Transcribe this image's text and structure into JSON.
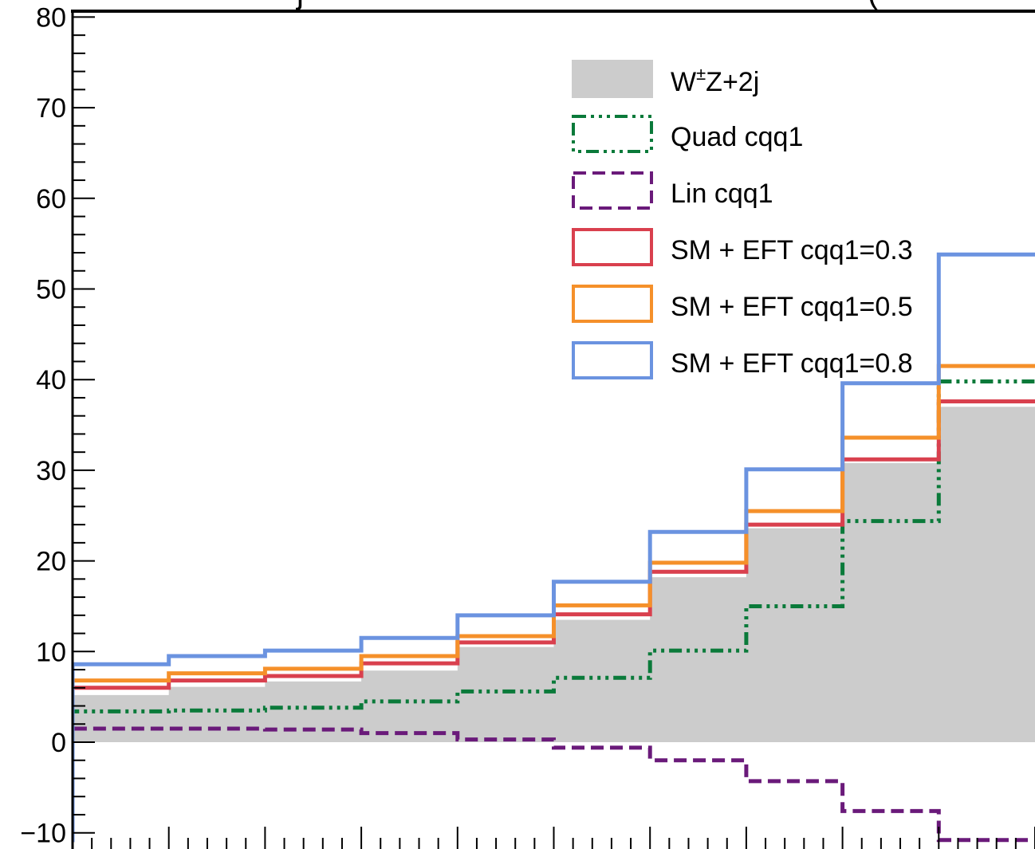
{
  "chart_data": {
    "type": "line",
    "title_left": "j",
    "title_right": "(",
    "xlabel": "",
    "ylabel": "",
    "ylim": [
      -11.0,
      80.0
    ],
    "yticks": [
      -10,
      0,
      10,
      20,
      30,
      40,
      50,
      60,
      70,
      80
    ],
    "ytick_labels": [
      "−10",
      "0",
      "10",
      "20",
      "30",
      "40",
      "50",
      "60",
      "70",
      "80"
    ],
    "x_bins": 10,
    "xlim": [
      0,
      10
    ],
    "grid": false,
    "legend_position": "top-right",
    "series": [
      {
        "name": "W±Z+2j",
        "label_main": "W",
        "label_sup": "±",
        "label_rest": "Z+2j",
        "style": "filled",
        "color": "#cccccc",
        "values": [
          5.2,
          6.1,
          6.7,
          7.9,
          10.5,
          13.5,
          18.2,
          23.6,
          30.8,
          37.0
        ]
      },
      {
        "name": "Quad cqq1",
        "style": "dashdot",
        "color": "#0a7a3a",
        "values": [
          3.4,
          3.5,
          3.8,
          4.5,
          5.6,
          7.1,
          10.1,
          15.0,
          24.4,
          39.8
        ]
      },
      {
        "name": "Lin cqq1",
        "style": "dashed",
        "color": "#6a1a7a",
        "values": [
          1.5,
          1.5,
          1.4,
          1.0,
          0.3,
          -0.6,
          -2.0,
          -4.3,
          -7.6,
          -10.8
        ]
      },
      {
        "name": "SM + EFT cqq1=0.3",
        "style": "solid",
        "color": "#d9404e",
        "values": [
          6.0,
          6.8,
          7.3,
          8.7,
          11.0,
          14.1,
          18.8,
          24.0,
          31.2,
          37.6
        ]
      },
      {
        "name": "SM + EFT cqq1=0.5",
        "style": "solid",
        "color": "#f5902a",
        "values": [
          6.8,
          7.6,
          8.1,
          9.5,
          11.7,
          15.1,
          19.8,
          25.5,
          33.6,
          41.5
        ]
      },
      {
        "name": "SM + EFT cqq1=0.8",
        "style": "solid",
        "color": "#6b93e0",
        "values": [
          8.6,
          9.5,
          10.1,
          11.5,
          14.0,
          17.7,
          23.2,
          30.1,
          39.6,
          53.8
        ]
      }
    ]
  }
}
